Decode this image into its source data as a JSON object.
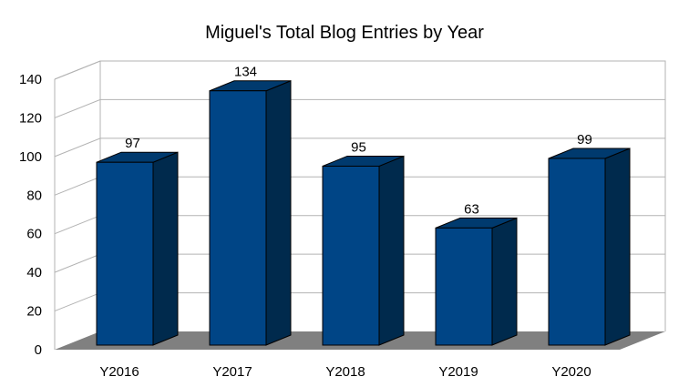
{
  "chart_data": {
    "type": "bar",
    "title": "Miguel's Total Blog Entries by Year",
    "categories": [
      "Y2016",
      "Y2017",
      "Y2018",
      "Y2019",
      "Y2020"
    ],
    "values": [
      97,
      134,
      95,
      63,
      99
    ],
    "ylim": [
      0,
      140
    ],
    "yticks": [
      "0",
      "20",
      "40",
      "60",
      "80",
      "100",
      "120",
      "140"
    ],
    "grid": true,
    "style": "3d",
    "colors": {
      "bar_front": "#004586",
      "bar_side": "#002a4d",
      "bar_top": "#003a6e",
      "floor": "#808080",
      "grid": "#b3b3b3"
    }
  }
}
